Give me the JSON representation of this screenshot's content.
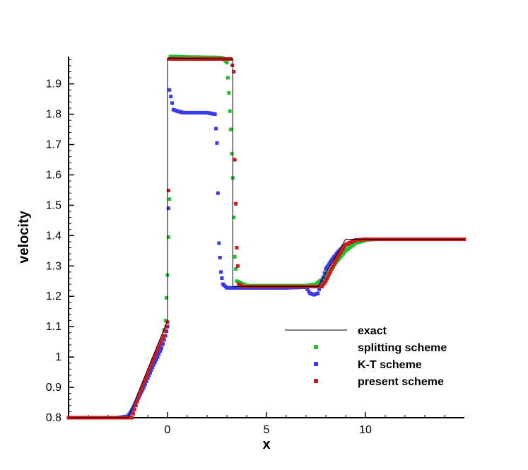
{
  "chart_data": {
    "type": "scatter",
    "xlabel": "x",
    "ylabel": "velocity",
    "xlim": [
      -5,
      15
    ],
    "ylim": [
      0.8,
      1.99
    ],
    "xticks": [
      0,
      5,
      10
    ],
    "yticks": [
      0.8,
      0.9,
      1,
      1.1,
      1.2,
      1.3,
      1.4,
      1.5,
      1.6,
      1.7,
      1.8,
      1.9
    ],
    "ytick_labels": [
      "0.8",
      "0.9",
      "1",
      "1.1",
      "1.2",
      "1.3",
      "1.4",
      "1.5",
      "1.6",
      "1.7",
      "1.8",
      "1.9"
    ],
    "xtick_labels": [
      "0",
      "5",
      "10"
    ],
    "legend_position": "lower-right",
    "series": [
      {
        "name": "exact",
        "style": "line",
        "color": "#000000",
        "x": [
          -5,
          -2,
          0,
          0,
          3.3,
          3.3,
          7.6,
          9,
          15
        ],
        "y": [
          0.8,
          0.8,
          1.12,
          1.985,
          1.982,
          1.232,
          1.232,
          1.388,
          1.388
        ]
      },
      {
        "name": "splitting scheme",
        "style": "markers",
        "color": "#22c02a",
        "x": [
          -5,
          -3,
          -2.5,
          -2.2,
          -2,
          -1.8,
          -1.5,
          -1.2,
          -1,
          -0.7,
          -0.5,
          -0.3,
          -0.1,
          0,
          0.1,
          0.15,
          0.2,
          0.3,
          0.5,
          1,
          1.5,
          2,
          2.5,
          2.8,
          3,
          3.1,
          3.2,
          3.3,
          3.4,
          3.5,
          4,
          5,
          6,
          7,
          7.5,
          8,
          8.5,
          9,
          9.5,
          10,
          10.5,
          11,
          12,
          13,
          14,
          15
        ],
        "y": [
          0.8,
          0.8,
          0.8,
          0.8,
          0.805,
          0.825,
          0.862,
          0.9,
          0.93,
          0.975,
          1.0,
          1.03,
          1.12,
          1.27,
          1.52,
          1.99,
          1.99,
          1.99,
          1.99,
          1.988,
          1.988,
          1.987,
          1.987,
          1.985,
          1.97,
          1.87,
          1.75,
          1.59,
          1.33,
          1.25,
          1.235,
          1.235,
          1.235,
          1.235,
          1.24,
          1.265,
          1.31,
          1.35,
          1.375,
          1.385,
          1.388,
          1.388,
          1.388,
          1.388,
          1.388,
          1.388
        ]
      },
      {
        "name": "K-T scheme",
        "style": "markers",
        "color": "#3a3ae8",
        "x": [
          -5,
          -3,
          -2.5,
          -2,
          -1.8,
          -1.5,
          -1.2,
          -1,
          -0.7,
          -0.5,
          -0.3,
          -0.1,
          0,
          0.1,
          0.3,
          0.5,
          0.8,
          1,
          1.5,
          2,
          2.4,
          2.5,
          2.6,
          2.7,
          2.8,
          3,
          3.5,
          4,
          5,
          6,
          7,
          7.2,
          7.4,
          7.6,
          7.8,
          8,
          8.3,
          8.6,
          9,
          9.5,
          10,
          11,
          12,
          13,
          14,
          15
        ],
        "y": [
          0.8,
          0.8,
          0.8,
          0.805,
          0.825,
          0.862,
          0.9,
          0.93,
          0.975,
          1.0,
          1.03,
          1.07,
          1.1,
          1.88,
          1.815,
          1.81,
          1.805,
          1.805,
          1.805,
          1.805,
          1.8,
          1.705,
          1.375,
          1.28,
          1.24,
          1.228,
          1.228,
          1.228,
          1.228,
          1.228,
          1.23,
          1.21,
          1.205,
          1.21,
          1.25,
          1.29,
          1.32,
          1.345,
          1.37,
          1.385,
          1.388,
          1.388,
          1.388,
          1.388,
          1.388,
          1.388
        ]
      },
      {
        "name": "present scheme",
        "style": "markers",
        "color": "#cc1a1a",
        "x": [
          -5,
          -3,
          -2.5,
          -2,
          -1.8,
          -1.6,
          -1.4,
          -1.2,
          -1,
          -0.8,
          -0.6,
          -0.4,
          -0.2,
          0,
          0.1,
          0.2,
          0.5,
          1,
          1.5,
          2,
          2.5,
          3,
          3.2,
          3.35,
          3.4,
          3.5,
          3.6,
          3.8,
          4,
          5,
          6,
          7,
          7.5,
          7.8,
          8,
          8.3,
          8.6,
          9,
          9.5,
          10,
          11,
          12,
          13,
          14,
          15
        ],
        "y": [
          0.8,
          0.8,
          0.8,
          0.8,
          0.8,
          0.84,
          0.88,
          0.915,
          0.945,
          0.98,
          1.01,
          1.04,
          1.07,
          1.115,
          1.982,
          1.982,
          1.982,
          1.982,
          1.982,
          1.982,
          1.982,
          1.982,
          1.982,
          1.94,
          1.65,
          1.36,
          1.24,
          1.232,
          1.232,
          1.232,
          1.232,
          1.232,
          1.232,
          1.232,
          1.25,
          1.29,
          1.33,
          1.37,
          1.385,
          1.388,
          1.388,
          1.388,
          1.388,
          1.388,
          1.388
        ]
      }
    ]
  }
}
